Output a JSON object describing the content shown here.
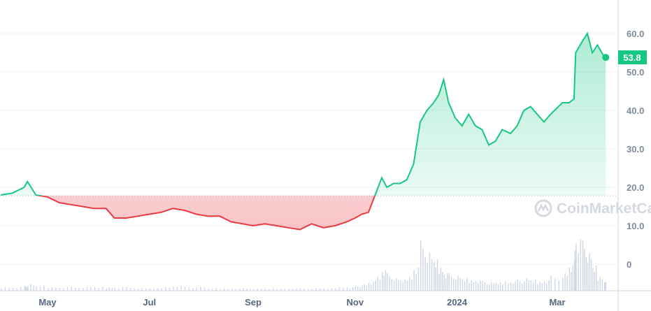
{
  "chart_data": {
    "type": "area",
    "title": "",
    "xlabel": "",
    "ylabel": "",
    "ylim": [
      -7,
      68
    ],
    "y_ticks": [
      "60.0",
      "50.0",
      "40.0",
      "30.0",
      "20.0",
      "10.0",
      "0"
    ],
    "y_tick_values": [
      60,
      50,
      40,
      30,
      20,
      10,
      0
    ],
    "x_ticks": [
      "May",
      "Jul",
      "Sep",
      "Nov",
      "2024",
      "Mar"
    ],
    "x_tick_dates": [
      "2023-05-01",
      "2023-07-01",
      "2023-09-01",
      "2023-11-01",
      "2024-01-01",
      "2024-03-01"
    ],
    "baseline": 17.8,
    "grid": "horizontal",
    "current_price_label": "53.8",
    "watermark": "CoinMarketCap",
    "colors": {
      "up": "#16c784",
      "down": "#ea3943",
      "grid": "#eff2f5",
      "axis": "#cfd6e4",
      "volume": "#cfd6e4"
    },
    "series": [
      {
        "values": [
          [
            "2023-04-03",
            18
          ],
          [
            "2023-04-10",
            18.5
          ],
          [
            "2023-04-17",
            20
          ],
          [
            "2023-04-19",
            21.5
          ],
          [
            "2023-04-24",
            18
          ],
          [
            "2023-05-01",
            17.5
          ],
          [
            "2023-05-08",
            16
          ],
          [
            "2023-05-15",
            15.5
          ],
          [
            "2023-05-22",
            15
          ],
          [
            "2023-05-29",
            14.5
          ],
          [
            "2023-06-05",
            14.5
          ],
          [
            "2023-06-10",
            12
          ],
          [
            "2023-06-17",
            12
          ],
          [
            "2023-06-24",
            12.5
          ],
          [
            "2023-07-01",
            13
          ],
          [
            "2023-07-08",
            13.5
          ],
          [
            "2023-07-15",
            14.5
          ],
          [
            "2023-07-22",
            14
          ],
          [
            "2023-07-29",
            13
          ],
          [
            "2023-08-05",
            12.5
          ],
          [
            "2023-08-12",
            12.5
          ],
          [
            "2023-08-19",
            11
          ],
          [
            "2023-08-26",
            10.5
          ],
          [
            "2023-09-01",
            10
          ],
          [
            "2023-09-08",
            10.5
          ],
          [
            "2023-09-15",
            10
          ],
          [
            "2023-09-22",
            9.5
          ],
          [
            "2023-09-29",
            9
          ],
          [
            "2023-10-06",
            10.5
          ],
          [
            "2023-10-13",
            9.5
          ],
          [
            "2023-10-20",
            10
          ],
          [
            "2023-10-27",
            11
          ],
          [
            "2023-11-01",
            12
          ],
          [
            "2023-11-05",
            13
          ],
          [
            "2023-11-09",
            13.5
          ],
          [
            "2023-11-13",
            18
          ],
          [
            "2023-11-17",
            22.5
          ],
          [
            "2023-11-20",
            20
          ],
          [
            "2023-11-24",
            21
          ],
          [
            "2023-11-28",
            21
          ],
          [
            "2023-12-02",
            22
          ],
          [
            "2023-12-06",
            26
          ],
          [
            "2023-12-10",
            37
          ],
          [
            "2023-12-14",
            40
          ],
          [
            "2023-12-18",
            42
          ],
          [
            "2023-12-21",
            44
          ],
          [
            "2023-12-24",
            48
          ],
          [
            "2023-12-27",
            42
          ],
          [
            "2023-12-31",
            38
          ],
          [
            "2024-01-04",
            36
          ],
          [
            "2024-01-08",
            39
          ],
          [
            "2024-01-12",
            36
          ],
          [
            "2024-01-16",
            35
          ],
          [
            "2024-01-20",
            31
          ],
          [
            "2024-01-24",
            32
          ],
          [
            "2024-01-28",
            35
          ],
          [
            "2024-02-02",
            34
          ],
          [
            "2024-02-06",
            36
          ],
          [
            "2024-02-10",
            40
          ],
          [
            "2024-02-14",
            41
          ],
          [
            "2024-02-18",
            39
          ],
          [
            "2024-02-22",
            37
          ],
          [
            "2024-02-26",
            39
          ],
          [
            "2024-03-04",
            42
          ],
          [
            "2024-03-08",
            42
          ],
          [
            "2024-03-11",
            43
          ],
          [
            "2024-03-12",
            55
          ],
          [
            "2024-03-16",
            58
          ],
          [
            "2024-03-19",
            60
          ],
          [
            "2024-03-22",
            55
          ],
          [
            "2024-03-25",
            57
          ],
          [
            "2024-03-29",
            54
          ],
          [
            "2024-03-30",
            53.8
          ]
        ]
      }
    ],
    "volume": [
      3,
      3,
      4,
      5,
      4,
      3,
      3,
      3,
      3,
      3,
      3,
      3,
      3,
      2,
      2,
      3,
      4,
      3,
      3,
      2,
      2,
      2,
      2,
      2,
      2,
      2,
      2,
      2,
      2,
      2,
      3,
      3,
      4,
      5,
      7,
      12,
      18,
      14,
      10,
      9,
      12,
      20,
      40,
      30,
      25,
      20,
      15,
      14,
      12,
      10,
      9,
      9,
      8,
      7,
      7,
      8,
      8,
      9,
      10,
      9,
      8,
      9,
      12,
      14,
      20,
      35,
      45,
      40,
      30,
      20,
      12,
      8,
      5
    ]
  }
}
